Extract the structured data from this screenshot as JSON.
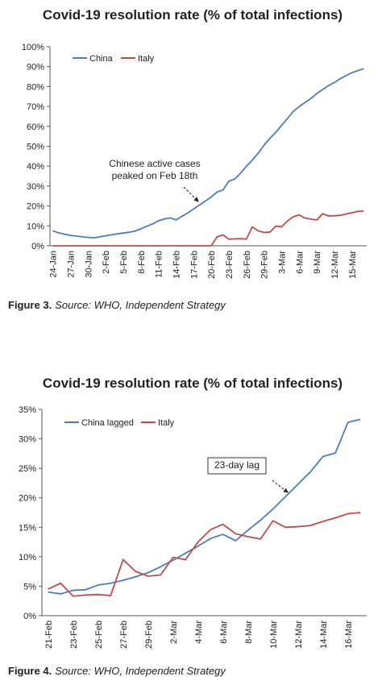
{
  "chart_data": [
    {
      "type": "line",
      "title": "Covid-19 resolution rate (% of total infections)",
      "categories": [
        "24-Jan",
        null,
        null,
        "27-Jan",
        null,
        null,
        "30-Jan",
        null,
        null,
        "2-Feb",
        null,
        null,
        "5-Feb",
        null,
        null,
        "8-Feb",
        null,
        null,
        "11-Feb",
        null,
        null,
        "14-Feb",
        null,
        null,
        "17-Feb",
        null,
        null,
        "20-Feb",
        null,
        null,
        "23-Feb",
        null,
        null,
        "26-Feb",
        null,
        null,
        "29-Feb",
        null,
        null,
        "3-Mar",
        null,
        null,
        "6-Mar",
        null,
        null,
        "9-Mar",
        null,
        null,
        "12-Mar",
        null,
        null,
        "15-Mar",
        null,
        null
      ],
      "series": [
        {
          "name": "China",
          "color": "#4a7ebb",
          "values": [
            7.5,
            6.5,
            5.8,
            5.2,
            4.9,
            4.5,
            4.2,
            4.0,
            4.5,
            5.0,
            5.5,
            6.0,
            6.4,
            6.8,
            7.4,
            8.5,
            9.8,
            11.0,
            12.5,
            13.5,
            14.0,
            13.0,
            14.8,
            16.5,
            18.5,
            20.5,
            22.5,
            24.5,
            27.0,
            28.0,
            32.5,
            33.5,
            36.5,
            40.0,
            43.0,
            46.5,
            50.5,
            54.0,
            57.0,
            60.5,
            64.0,
            67.5,
            70.0,
            72.0,
            74.0,
            76.5,
            78.5,
            80.5,
            82.0,
            84.0,
            85.5,
            87.0,
            88.0,
            89.0
          ]
        },
        {
          "name": "Italy",
          "color": "#be4b48",
          "values": [
            0,
            0,
            0,
            0,
            0,
            0,
            0,
            0,
            0,
            0,
            0,
            0,
            0,
            0,
            0,
            0,
            0,
            0,
            0,
            0,
            0,
            0,
            0,
            0,
            0,
            0,
            0,
            0,
            4.5,
            5.5,
            3.3,
            3.5,
            3.6,
            3.4,
            9.5,
            7.5,
            6.7,
            6.9,
            9.9,
            9.5,
            12.5,
            14.6,
            15.5,
            13.9,
            13.4,
            13.0,
            16.1,
            15.0,
            15.1,
            15.3,
            16.0,
            16.6,
            17.3,
            17.5
          ]
        }
      ],
      "ylim": [
        0,
        100
      ],
      "yticks": [
        {
          "value": 0,
          "label": "0%"
        },
        {
          "value": 10,
          "label": "10%"
        },
        {
          "value": 20,
          "label": "20%"
        },
        {
          "value": 30,
          "label": "30%"
        },
        {
          "value": 40,
          "label": "40%"
        },
        {
          "value": 50,
          "label": "50%"
        },
        {
          "value": 60,
          "label": "60%"
        },
        {
          "value": 70,
          "label": "70%"
        },
        {
          "value": 80,
          "label": "80%"
        },
        {
          "value": 90,
          "label": "90%"
        },
        {
          "value": 100,
          "label": "100%"
        }
      ],
      "grid": false,
      "legend": "top-left",
      "annotation": [
        "Chinese active cases",
        "peaked on Feb 18th"
      ],
      "caption_label": "Figure 3.",
      "caption_text": "Source: WHO, Independent Strategy"
    },
    {
      "type": "line",
      "title": "Covid-19 resolution rate (% of total infections)",
      "categories": [
        "21-Feb",
        null,
        "23-Feb",
        null,
        "25-Feb",
        null,
        "27-Feb",
        null,
        "29-Feb",
        null,
        "2-Mar",
        null,
        "4-Mar",
        null,
        "6-Mar",
        null,
        "8-Mar",
        null,
        "10-Mar",
        null,
        "12-Mar",
        null,
        "14-Mar",
        null,
        "16-Mar",
        null
      ],
      "series": [
        {
          "name": "China lagged",
          "color": "#4a7ebb",
          "values": [
            4.0,
            3.7,
            4.3,
            4.4,
            5.2,
            5.5,
            6.0,
            6.6,
            7.3,
            8.3,
            9.4,
            10.6,
            11.8,
            13.1,
            13.8,
            12.7,
            14.5,
            16.2,
            18.1,
            20.2,
            22.3,
            24.4,
            27.0,
            27.6,
            32.8,
            33.3
          ]
        },
        {
          "name": "Italy",
          "color": "#be4b48",
          "values": [
            4.5,
            5.5,
            3.3,
            3.5,
            3.6,
            3.4,
            9.5,
            7.5,
            6.7,
            6.9,
            9.9,
            9.5,
            12.5,
            14.6,
            15.5,
            13.9,
            13.4,
            13.0,
            16.1,
            15.0,
            15.1,
            15.3,
            16.0,
            16.6,
            17.3,
            17.5
          ]
        }
      ],
      "ylim": [
        0,
        35
      ],
      "yticks": [
        {
          "value": 0,
          "label": "0%"
        },
        {
          "value": 5,
          "label": "5%"
        },
        {
          "value": 10,
          "label": "10%"
        },
        {
          "value": 15,
          "label": "15%"
        },
        {
          "value": 20,
          "label": "20%"
        },
        {
          "value": 25,
          "label": "25%"
        },
        {
          "value": 30,
          "label": "30%"
        },
        {
          "value": 35,
          "label": "35%"
        }
      ],
      "grid": false,
      "legend": "top-left",
      "annotation": [
        "23-day lag"
      ],
      "caption_label": "Figure 4.",
      "caption_text": "Source: WHO, Independent Strategy"
    }
  ]
}
